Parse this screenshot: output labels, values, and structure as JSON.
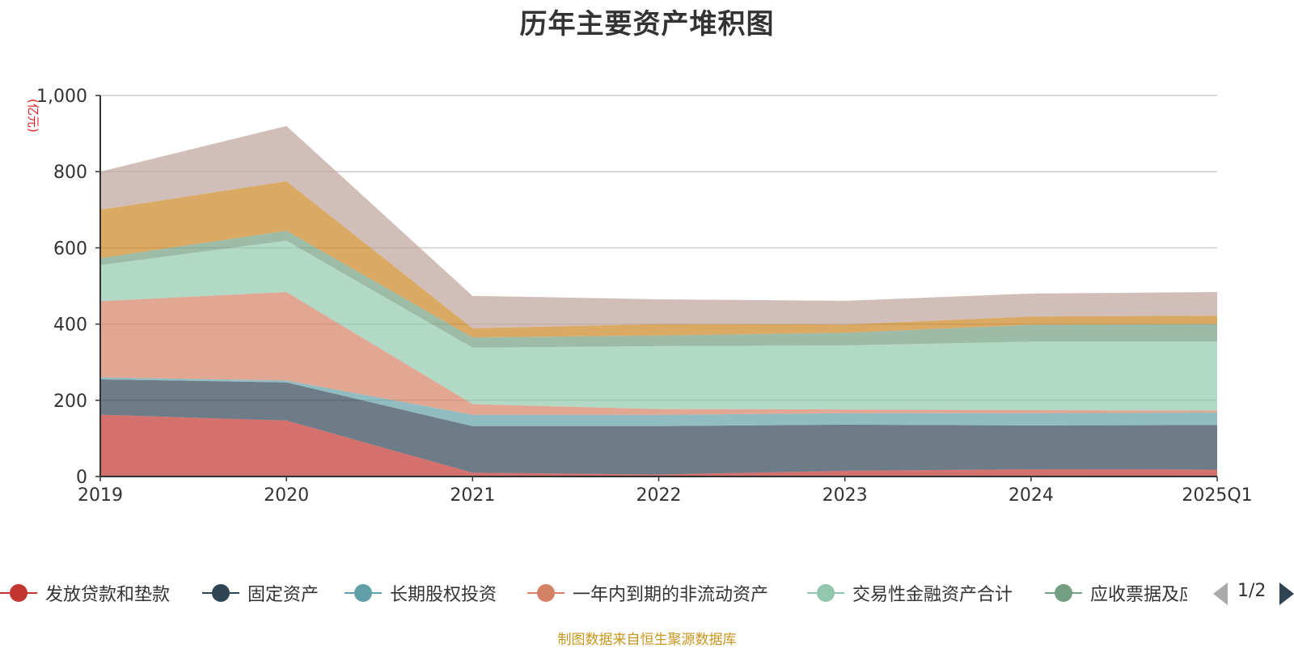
{
  "chart_data": {
    "type": "area",
    "stacked": true,
    "title": "历年主要资产堆积图",
    "unit_label": "(亿元)",
    "x": [
      "2019",
      "2020",
      "2021",
      "2022",
      "2023",
      "2024",
      "2025Q1"
    ],
    "ylim": [
      0,
      1000
    ],
    "yticks": [
      "0",
      "200",
      "400",
      "600",
      "800",
      "1,000"
    ],
    "grid": true,
    "legend_position": "bottom",
    "series": [
      {
        "name": "发放贷款和垫款",
        "color": "#c23531",
        "values": [
          162,
          147,
          10,
          5,
          15,
          19,
          18
        ]
      },
      {
        "name": "固定资产",
        "color": "#2f4554",
        "values": [
          93,
          100,
          122,
          127,
          121,
          115,
          117
        ]
      },
      {
        "name": "长期股权投资",
        "color": "#61a0a8",
        "values": [
          5,
          5,
          30,
          30,
          30,
          32,
          33
        ]
      },
      {
        "name": "一年内到期的非流动资产",
        "color": "#d48265",
        "values": [
          200,
          232,
          28,
          15,
          10,
          8,
          5
        ]
      },
      {
        "name": "交易性金融资产合计",
        "color": "#91c7ae",
        "values": [
          95,
          135,
          148,
          165,
          168,
          180,
          181
        ]
      },
      {
        "name": "应收票据及应收账款",
        "color": "#749f83",
        "values": [
          18,
          26,
          27,
          28,
          33,
          44,
          46
        ]
      },
      {
        "name": "",
        "color": "#ca8622",
        "values": [
          127,
          130,
          24,
          30,
          22,
          22,
          22
        ]
      },
      {
        "name": "",
        "color": "#bda29a",
        "values": [
          100,
          145,
          85,
          65,
          62,
          60,
          62
        ]
      }
    ]
  },
  "legend": {
    "visible_items": [
      {
        "label": "发放贷款和垫款",
        "color": "#c23531"
      },
      {
        "label": "固定资产",
        "color": "#2f4554"
      },
      {
        "label": "长期股权投资",
        "color": "#61a0a8"
      },
      {
        "label": "一年内到期的非流动资产",
        "color": "#d48265"
      },
      {
        "label": "交易性金融资产合计",
        "color": "#91c7ae"
      },
      {
        "label": "应收票据及应收账款",
        "color": "#749f83"
      }
    ],
    "page_indicator": "1/2"
  },
  "footer": "制图数据来自恒生聚源数据库"
}
